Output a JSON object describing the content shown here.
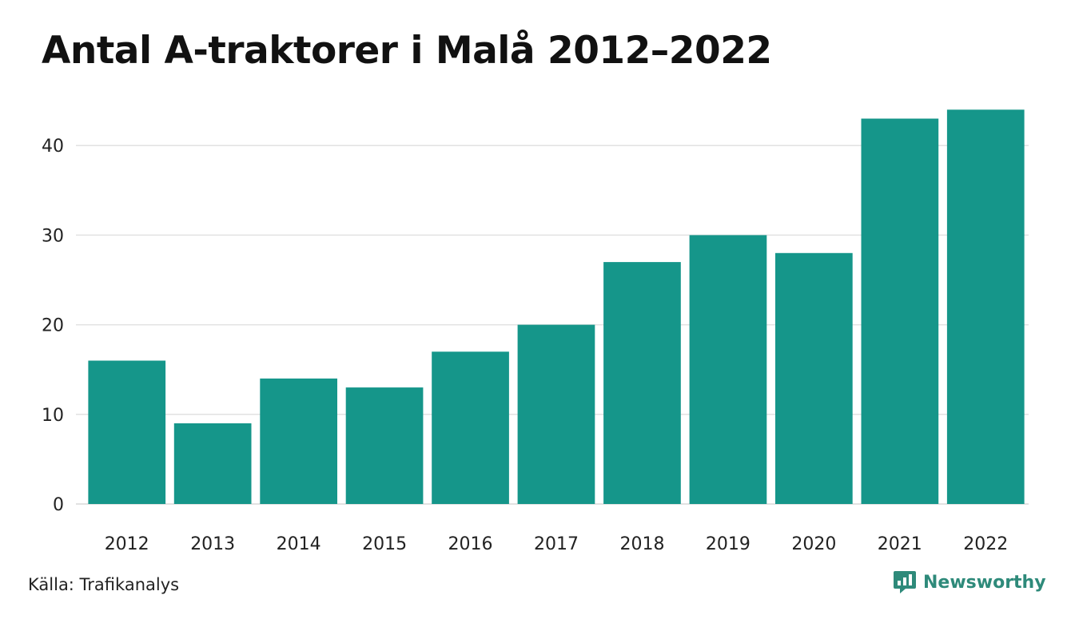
{
  "chart_data": {
    "type": "bar",
    "title": "Antal A-traktorer i Malå 2012–2022",
    "xlabel": "",
    "ylabel": "",
    "categories": [
      "2012",
      "2013",
      "2014",
      "2015",
      "2016",
      "2017",
      "2018",
      "2019",
      "2020",
      "2021",
      "2022"
    ],
    "values": [
      16,
      9,
      14,
      13,
      17,
      20,
      27,
      30,
      28,
      43,
      44
    ],
    "yticks": [
      "0",
      "10",
      "20",
      "30",
      "40"
    ],
    "ylim": [
      0,
      44
    ],
    "grid": true,
    "bar_color": "#15968a",
    "grid_color": "#e2e2e2"
  },
  "source": "Källa: Trafikanalys",
  "brand": {
    "name": "Newsworthy",
    "icon": "newsworthy-logo-icon",
    "color": "#2e8a7a"
  }
}
